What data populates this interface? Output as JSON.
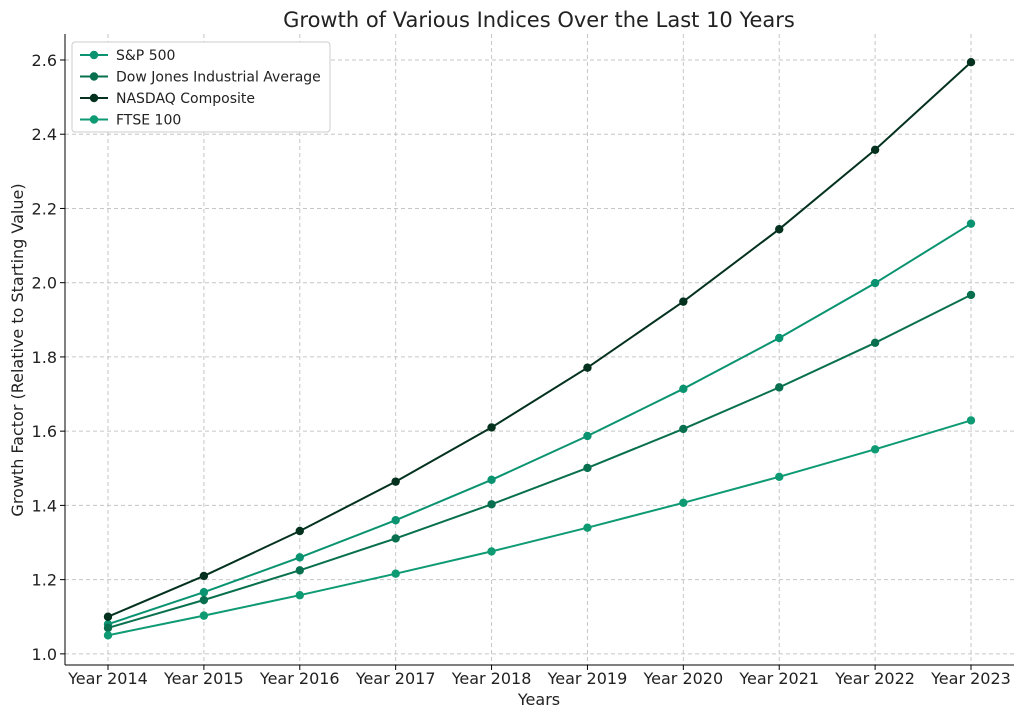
{
  "chart_data": {
    "type": "line",
    "title": "Growth of Various Indices Over the Last 10 Years",
    "xlabel": "Years",
    "ylabel": "Growth Factor (Relative to Starting Value)",
    "categories": [
      "Year 2014",
      "Year 2015",
      "Year 2016",
      "Year 2017",
      "Year 2018",
      "Year 2019",
      "Year 2020",
      "Year 2021",
      "Year 2022",
      "Year 2023"
    ],
    "ylim": [
      0.97,
      2.67
    ],
    "yticks": [
      "1.0",
      "1.2",
      "1.4",
      "1.6",
      "1.8",
      "2.0",
      "2.2",
      "2.4",
      "2.6"
    ],
    "grid": true,
    "legend_position": "top-left",
    "series": [
      {
        "name": "S&P 500",
        "color": "#0a9370",
        "values": [
          1.08,
          1.166,
          1.26,
          1.36,
          1.469,
          1.587,
          1.714,
          1.851,
          1.999,
          2.159
        ]
      },
      {
        "name": "Dow Jones Industrial Average",
        "color": "#08704e",
        "values": [
          1.07,
          1.145,
          1.225,
          1.311,
          1.403,
          1.501,
          1.606,
          1.718,
          1.838,
          1.967
        ]
      },
      {
        "name": "NASDAQ Composite",
        "color": "#04321f",
        "values": [
          1.1,
          1.21,
          1.331,
          1.464,
          1.61,
          1.771,
          1.949,
          2.144,
          2.358,
          2.594
        ]
      },
      {
        "name": "FTSE 100",
        "color": "#0e9a73",
        "values": [
          1.05,
          1.103,
          1.158,
          1.216,
          1.276,
          1.34,
          1.407,
          1.477,
          1.551,
          1.629
        ]
      }
    ]
  }
}
